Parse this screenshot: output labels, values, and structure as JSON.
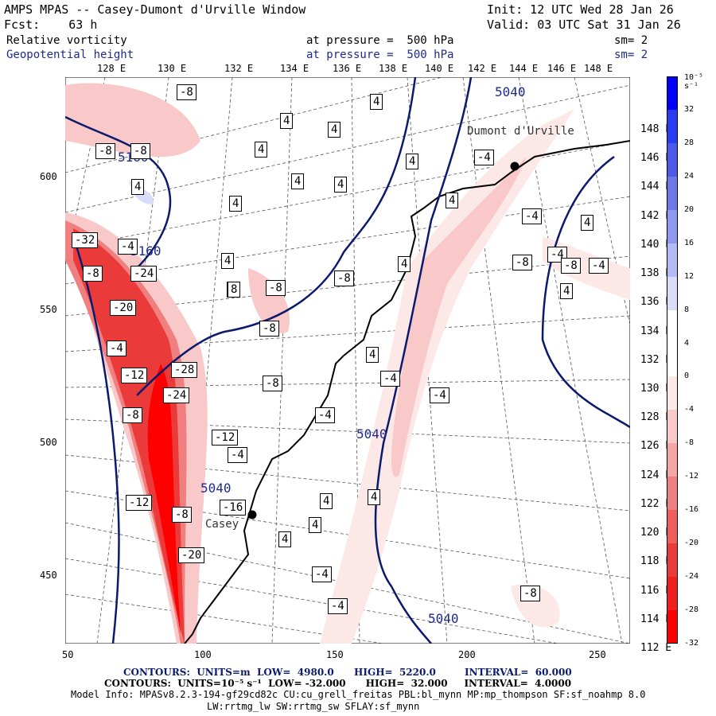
{
  "header": {
    "title": "AMPS MPAS -- Casey-Dumont d'Urville Window",
    "init": "Init: 12 UTC Wed 28 Jan 26",
    "fcst": "Fcst:    63 h",
    "valid": "Valid: 03 UTC Sat 31 Jan 26",
    "field1": "Relative vorticity",
    "field1_level": "at pressure =  500 hPa",
    "field1_sm": "sm= 2",
    "field2": "Geopotential height",
    "field2_level": "at pressure =  500 hPa",
    "field2_sm": "sm= 2"
  },
  "lon_labels": [
    "128 E",
    "130 E",
    "132 E",
    "134 E",
    "136 E",
    "138 E",
    "140 E",
    "142 E",
    "144 E",
    "146 E",
    "148 E"
  ],
  "lat_labels": [
    "148 E",
    "146 E",
    "144 E",
    "142 E",
    "140 E",
    "138 E",
    "136 E",
    "134 E",
    "132 E",
    "130 E",
    "128 E",
    "126 E",
    "124 E",
    "122 E",
    "120 E",
    "118 E",
    "116 E",
    "114 E",
    "112 E"
  ],
  "x_ticks": [
    "50",
    "100",
    "150",
    "200",
    "250"
  ],
  "y_ticks": [
    "600",
    "550",
    "500",
    "450"
  ],
  "stations": [
    {
      "name": "Dumont d'Urville"
    },
    {
      "name": "Casey"
    }
  ],
  "height_contour_labels": [
    "5040",
    "5160",
    "5160",
    "5040",
    "5040",
    "5040"
  ],
  "vort_labels": [
    "-8",
    "4",
    "4",
    "4",
    "4",
    "4",
    "4",
    "4",
    "4",
    "4",
    "-8",
    "-8",
    "-4",
    "4",
    "4",
    "4",
    "-8",
    "-4",
    "-8",
    "-8",
    "-32",
    "-24",
    "-20",
    "-28",
    "-24",
    "-12",
    "-8",
    "-12",
    "-12",
    "-16",
    "-8",
    "-20",
    "-4",
    "4",
    "8",
    "-8",
    "-4",
    "4",
    "-4",
    "-8",
    "-4",
    "-4",
    "-4",
    "-8",
    "-4",
    "4",
    "-8",
    "-4",
    "4",
    "4",
    "4",
    "4",
    "4",
    "-4",
    "-4",
    "-8"
  ],
  "colorbar": {
    "unit": "10⁻⁵ s⁻¹",
    "labels": [
      "32",
      "28",
      "24",
      "20",
      "16",
      "12",
      "8",
      "4",
      "0",
      "-4",
      "-8",
      "-12",
      "-16",
      "-20",
      "-24",
      "-28",
      "-32"
    ],
    "colors": [
      "#0000ff",
      "#2a3cf2",
      "#4a5ae6",
      "#6c78e8",
      "#8e98ee",
      "#b4baf4",
      "#dadcfa",
      "#ffffff",
      "#ffffff",
      "#fde8e8",
      "#f9c8c8",
      "#f5a6a6",
      "#f08080",
      "#ee5c5c",
      "#ea3a3a",
      "#f01e1e",
      "#ff0000"
    ]
  },
  "footer": {
    "line1_a": "CONTOURS:  UNITS=m  LOW=  4980.0",
    "line1_b": "HIGH=  5220.0",
    "line1_c": "INTERVAL=  60.000",
    "line2": "CONTOURS:  UNITS=10⁻⁵ s⁻¹  LOW= -32.000      HIGH=  32.000     INTERVAL=  4.0000",
    "line3": "Model Info: MPASv8.2.3-194-gf29cd82c CU:cu_grell_freitas PBL:bl_mynn MP:mp_thompson SF:sf_noahmp 8.0",
    "line4": "LW:rrtmg_lw SW:rrtmg_sw SFLAY:sf_mynn"
  }
}
